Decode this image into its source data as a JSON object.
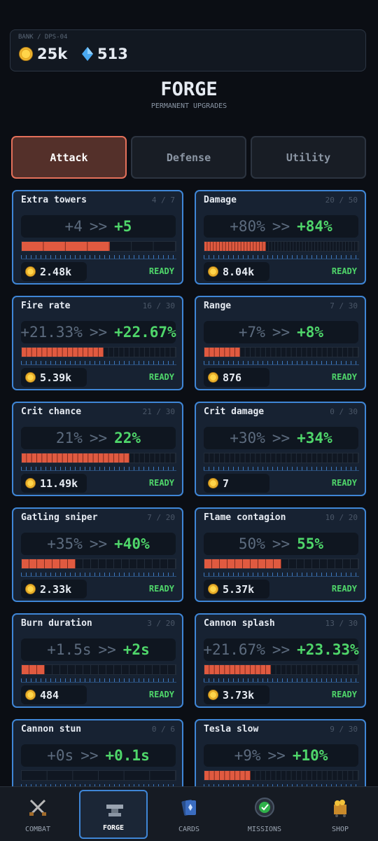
{
  "header": {
    "bank_label": "BANK / DPS-04",
    "coins": "25k",
    "gems": "513",
    "title": "FORGE",
    "subtitle": "PERMANENT UPGRADES"
  },
  "tabs": [
    {
      "label": "Attack",
      "active": true
    },
    {
      "label": "Defense",
      "active": false
    },
    {
      "label": "Utility",
      "active": false
    }
  ],
  "ui": {
    "arrow": ">>",
    "level_separator": "/"
  },
  "upgrades": [
    {
      "name": "Extra towers",
      "level": 4,
      "max_level": 7,
      "current": "+4",
      "next": "+5",
      "cost": "2.48k",
      "status": "READY"
    },
    {
      "name": "Damage",
      "level": 20,
      "max_level": 50,
      "current": "+80%",
      "next": "+84%",
      "cost": "8.04k",
      "status": "READY"
    },
    {
      "name": "Fire rate",
      "level": 16,
      "max_level": 30,
      "current": "+21.33%",
      "next": "+22.67%",
      "cost": "5.39k",
      "status": "READY"
    },
    {
      "name": "Range",
      "level": 7,
      "max_level": 30,
      "current": "+7%",
      "next": "+8%",
      "cost": "876",
      "status": "READY"
    },
    {
      "name": "Crit chance",
      "level": 21,
      "max_level": 30,
      "current": "21%",
      "next": "22%",
      "cost": "11.49k",
      "status": "READY"
    },
    {
      "name": "Crit damage",
      "level": 0,
      "max_level": 30,
      "current": "+30%",
      "next": "+34%",
      "cost": "7",
      "status": "READY"
    },
    {
      "name": "Gatling sniper",
      "level": 7,
      "max_level": 20,
      "current": "+35%",
      "next": "+40%",
      "cost": "2.33k",
      "status": "READY"
    },
    {
      "name": "Flame contagion",
      "level": 10,
      "max_level": 20,
      "current": "50%",
      "next": "55%",
      "cost": "5.37k",
      "status": "READY"
    },
    {
      "name": "Burn duration",
      "level": 3,
      "max_level": 20,
      "current": "+1.5s",
      "next": "+2s",
      "cost": "484",
      "status": "READY"
    },
    {
      "name": "Cannon splash",
      "level": 13,
      "max_level": 30,
      "current": "+21.67%",
      "next": "+23.33%",
      "cost": "3.73k",
      "status": "READY"
    },
    {
      "name": "Cannon stun",
      "level": 0,
      "max_level": 6,
      "current": "+0s",
      "next": "+0.1s"
    },
    {
      "name": "Tesla slow",
      "level": 9,
      "max_level": 30,
      "current": "+9%",
      "next": "+10%"
    }
  ],
  "nav": [
    {
      "label": "COMBAT",
      "active": false
    },
    {
      "label": "FORGE",
      "active": true
    },
    {
      "label": "CARDS",
      "active": false
    },
    {
      "label": "MISSIONS",
      "active": false
    },
    {
      "label": "SHOP",
      "active": false
    }
  ]
}
